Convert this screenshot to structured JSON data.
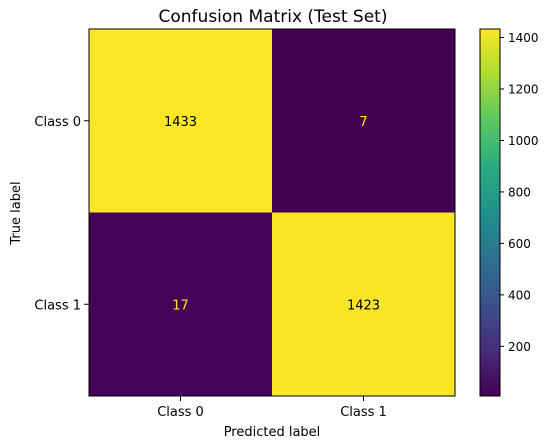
{
  "chart_data": {
    "type": "heatmap",
    "title": "Confusion Matrix (Test Set)",
    "xlabel": "Predicted label",
    "ylabel": "True label",
    "x_categories": [
      "Class 0",
      "Class 1"
    ],
    "y_categories": [
      "Class 0",
      "Class 1"
    ],
    "values": [
      [
        1433,
        7
      ],
      [
        17,
        1423
      ]
    ],
    "colormap": "viridis",
    "colorbar": {
      "range": [
        7,
        1433
      ],
      "ticks": [
        200,
        400,
        600,
        800,
        1000,
        1200,
        1400
      ]
    },
    "text_colors": {
      "on_dark": "#fde725",
      "on_light": "#000000"
    }
  }
}
